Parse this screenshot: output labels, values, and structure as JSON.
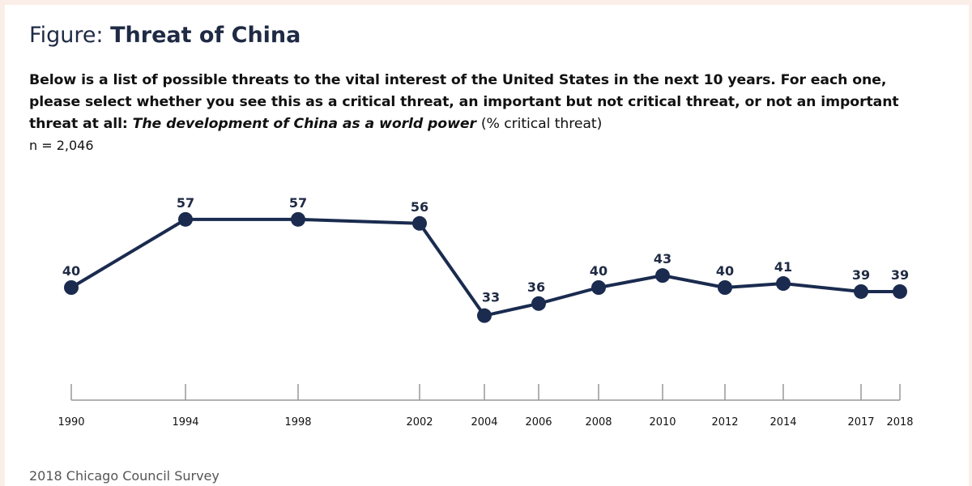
{
  "header": {
    "figure_prefix": "Figure:",
    "figure_title": "Threat of China"
  },
  "question": {
    "text": "Below is a list of possible threats to the vital interest of the United States in the next 10 years. For each one, please select whether you see this as a critical threat, an important but not critical threat, or not an important threat at all:",
    "italic_part": "The development of China as a world power",
    "suffix": "(% critical threat)",
    "n": "n = 2,046"
  },
  "source": "2018 Chicago Council Survey",
  "colors": {
    "line": "#1a2b4f",
    "axis": "#999999"
  },
  "chart_data": {
    "type": "line",
    "title": "Threat of China",
    "xlabel": "",
    "ylabel": "% critical threat",
    "series": [
      {
        "name": "The development of China as a world power",
        "x": [
          1990,
          1994,
          1998,
          2002,
          2004,
          2006,
          2008,
          2010,
          2012,
          2014,
          2017,
          2018
        ],
        "values": [
          40,
          57,
          57,
          56,
          33,
          36,
          40,
          43,
          40,
          41,
          39,
          39
        ]
      }
    ],
    "tick_labels": [
      "1990",
      "1994",
      "1998",
      "2002",
      "2004",
      "2006",
      "2008",
      "2010",
      "2012",
      "2014",
      "2017",
      "2018"
    ],
    "ylim": [
      0,
      60
    ],
    "grid": false,
    "legend": "none"
  }
}
